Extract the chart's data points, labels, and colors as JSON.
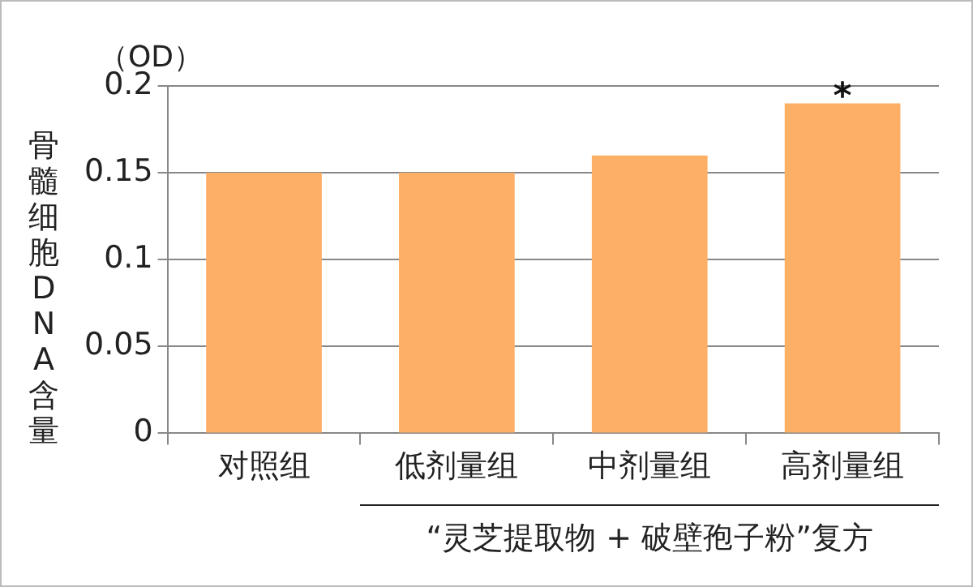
{
  "chart_data": {
    "type": "bar",
    "ylabel": "骨髓细胞DNA含量",
    "categories": [
      "对照组",
      "低剂量组",
      "中剂量组",
      "高剂量组"
    ],
    "values": [
      0.15,
      0.15,
      0.16,
      0.19
    ],
    "color": "#fdb065",
    "ylim": [
      0,
      0.2
    ],
    "yticks": [
      0,
      0.05,
      0.1,
      0.15,
      0.2
    ],
    "grid": "y",
    "legend": false,
    "annotations": [
      "（OD）",
      {
        "text": "*",
        "x": "高剂量组",
        "y": 0.19
      },
      "“灵芝提取物 + 破壁孢子粉”复方"
    ]
  }
}
